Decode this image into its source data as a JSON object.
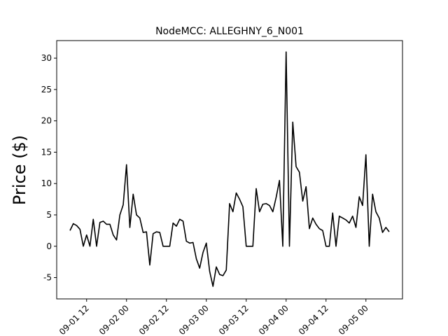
{
  "chart_data": {
    "type": "line",
    "title": "NodeMCC: ALLEGHNY_6_N001",
    "y_label": "Price ($)",
    "x": [
      "09-01 07",
      "09-01 08",
      "09-01 09",
      "09-01 10",
      "09-01 11",
      "09-01 12",
      "09-01 13",
      "09-01 14",
      "09-01 15",
      "09-01 16",
      "09-01 17",
      "09-01 18",
      "09-01 19",
      "09-01 20",
      "09-01 21",
      "09-01 22",
      "09-01 23",
      "09-02 00",
      "09-02 01",
      "09-02 02",
      "09-02 03",
      "09-02 04",
      "09-02 05",
      "09-02 06",
      "09-02 07",
      "09-02 08",
      "09-02 09",
      "09-02 10",
      "09-02 11",
      "09-02 12",
      "09-02 13",
      "09-02 14",
      "09-02 15",
      "09-02 16",
      "09-02 17",
      "09-02 18",
      "09-02 19",
      "09-02 20",
      "09-02 21",
      "09-02 22",
      "09-02 23",
      "09-03 00",
      "09-03 01",
      "09-03 02",
      "09-03 03",
      "09-03 04",
      "09-03 05",
      "09-03 06",
      "09-03 07",
      "09-03 08",
      "09-03 09",
      "09-03 10",
      "09-03 11",
      "09-03 12",
      "09-03 13",
      "09-03 14",
      "09-03 15",
      "09-03 16",
      "09-03 17",
      "09-03 18",
      "09-03 19",
      "09-03 20",
      "09-03 21",
      "09-03 22",
      "09-03 23",
      "09-04 00",
      "09-04 01",
      "09-04 02",
      "09-04 03",
      "09-04 04",
      "09-04 05",
      "09-04 06",
      "09-04 07",
      "09-04 08",
      "09-04 09",
      "09-04 10",
      "09-04 11",
      "09-04 12",
      "09-04 13",
      "09-04 14",
      "09-04 15",
      "09-04 16",
      "09-04 17",
      "09-04 18",
      "09-04 19",
      "09-04 20",
      "09-04 21",
      "09-04 22",
      "09-04 23",
      "09-05 00",
      "09-05 01",
      "09-05 02",
      "09-05 03",
      "09-05 04",
      "09-05 05",
      "09-05 06",
      "09-05 07"
    ],
    "series": [
      {
        "name": "Price",
        "color": "#000000",
        "values": [
          2.5,
          3.6,
          3.3,
          2.7,
          0,
          1.8,
          0,
          4.3,
          0,
          3.8,
          4.0,
          3.5,
          3.5,
          1.8,
          1.0,
          5.0,
          6.6,
          13.0,
          3.0,
          8.3,
          5.0,
          4.5,
          2.2,
          2.3,
          -3.0,
          2.0,
          2.3,
          2.2,
          0,
          0,
          0,
          3.7,
          3.2,
          4.3,
          4.0,
          0.8,
          0.5,
          0.6,
          -2.0,
          -3.5,
          -1.0,
          0.5,
          -4.0,
          -6.4,
          -3.3,
          -4.5,
          -4.7,
          -3.8,
          6.8,
          5.5,
          8.5,
          7.5,
          6.3,
          0,
          0,
          0,
          9.2,
          5.5,
          6.7,
          6.8,
          6.5,
          5.5,
          7.8,
          10.5,
          0,
          31.0,
          0,
          19.8,
          12.7,
          11.8,
          7.2,
          9.5,
          2.8,
          4.5,
          3.5,
          2.8,
          2.5,
          0,
          0,
          5.3,
          0,
          4.8,
          4.5,
          4.2,
          3.7,
          4.8,
          3.0,
          7.9,
          6.5,
          14.6,
          0,
          8.3,
          5.5,
          4.5,
          2.2,
          3.0,
          2.3
        ]
      }
    ],
    "xlim": [
      "09-01 03",
      "09-05 11"
    ],
    "xticks": [
      "09-01 12",
      "09-02 00",
      "09-02 12",
      "09-03 00",
      "09-03 12",
      "09-04 00",
      "09-04 12",
      "09-05 00"
    ],
    "ylim": [
      -8.4,
      32.8
    ],
    "yticks": [
      -5,
      0,
      5,
      10,
      15,
      20,
      25,
      30
    ]
  }
}
